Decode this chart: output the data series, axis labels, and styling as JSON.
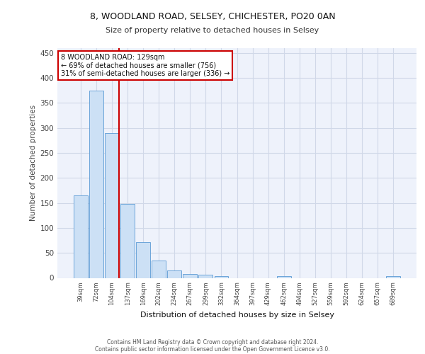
{
  "title_line1": "8, WOODLAND ROAD, SELSEY, CHICHESTER, PO20 0AN",
  "title_line2": "Size of property relative to detached houses in Selsey",
  "xlabel": "Distribution of detached houses by size in Selsey",
  "ylabel": "Number of detached properties",
  "categories": [
    "39sqm",
    "72sqm",
    "104sqm",
    "137sqm",
    "169sqm",
    "202sqm",
    "234sqm",
    "267sqm",
    "299sqm",
    "332sqm",
    "364sqm",
    "397sqm",
    "429sqm",
    "462sqm",
    "494sqm",
    "527sqm",
    "559sqm",
    "592sqm",
    "624sqm",
    "657sqm",
    "689sqm"
  ],
  "values": [
    165,
    375,
    290,
    148,
    72,
    35,
    15,
    8,
    6,
    4,
    0,
    0,
    0,
    4,
    0,
    0,
    0,
    0,
    0,
    0,
    4
  ],
  "bar_color": "#cce0f5",
  "bar_edge_color": "#5b9bd5",
  "grid_color": "#d0d8e8",
  "background_color": "#eef2fb",
  "annotation_text_line1": "8 WOODLAND ROAD: 129sqm",
  "annotation_text_line2": "← 69% of detached houses are smaller (756)",
  "annotation_text_line3": "31% of semi-detached houses are larger (336) →",
  "annotation_box_color": "#ffffff",
  "annotation_box_edge_color": "#cc0000",
  "red_line_color": "#cc0000",
  "ylim": [
    0,
    460
  ],
  "yticks": [
    0,
    50,
    100,
    150,
    200,
    250,
    300,
    350,
    400,
    450
  ],
  "footer_line1": "Contains HM Land Registry data © Crown copyright and database right 2024.",
  "footer_line2": "Contains public sector information licensed under the Open Government Licence v3.0."
}
